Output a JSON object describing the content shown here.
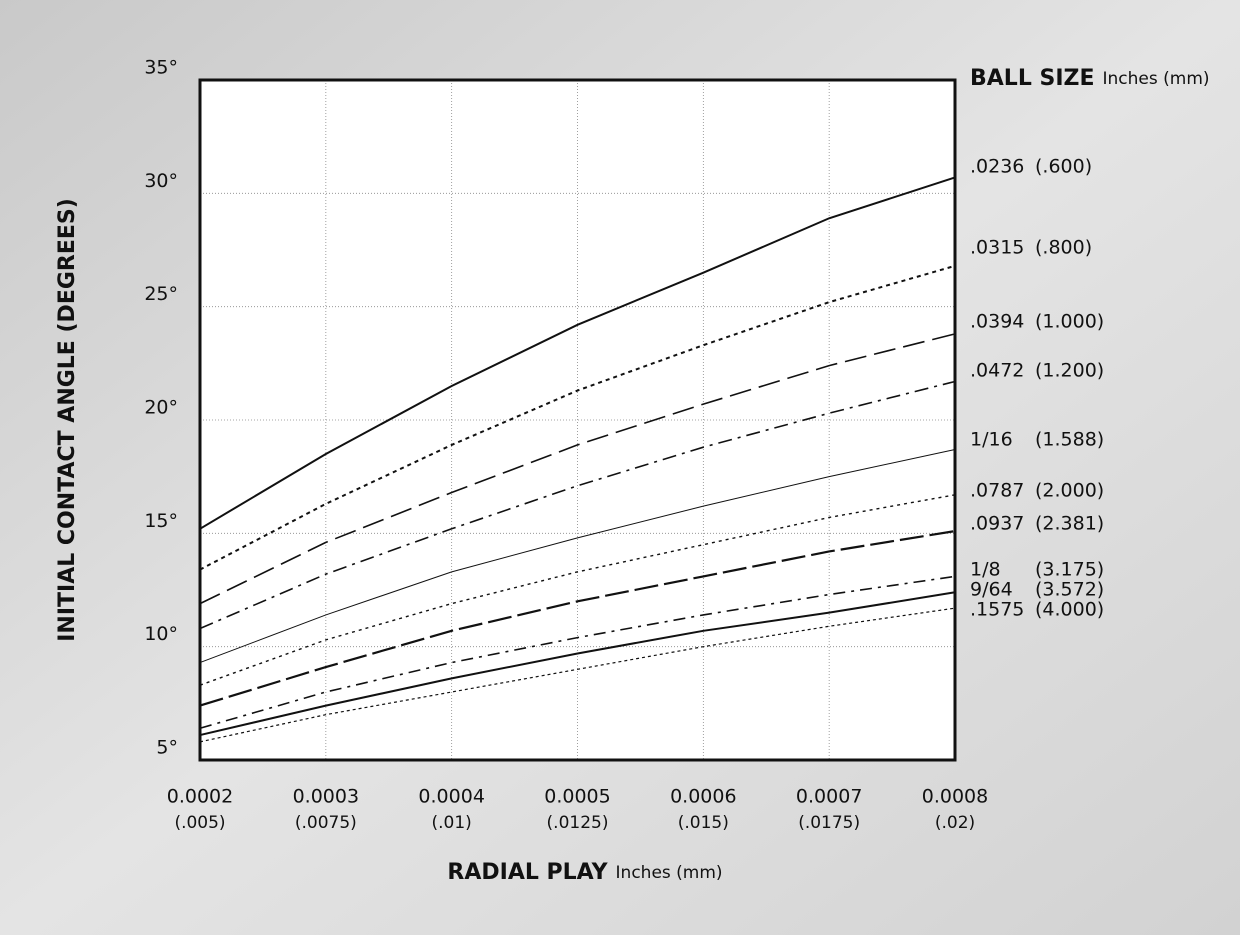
{
  "chart_data": {
    "type": "line",
    "ylabel": "INITIAL CONTACT ANGLE (DEGREES)",
    "xlabel": "RADIAL PLAY",
    "xlabel_units": "Inches (mm)",
    "legend_title": "BALL SIZE",
    "legend_units": "Inches (mm)",
    "x": [
      0.0002,
      0.0003,
      0.0004,
      0.0005,
      0.0006,
      0.0007,
      0.0008
    ],
    "xlim": [
      0.0002,
      0.0008
    ],
    "xticks": [
      0.0002,
      0.0003,
      0.0004,
      0.0005,
      0.0006,
      0.0007,
      0.0008
    ],
    "xticks_mm": [
      "(.005)",
      "(.0075)",
      "(.01)",
      "(.0125)",
      "(.015)",
      "(.0175)",
      "(.02)"
    ],
    "ylim": [
      5,
      35
    ],
    "yticks": [
      {
        "value": 5,
        "label": "5°"
      },
      {
        "value": 10,
        "label": "10°"
      },
      {
        "value": 15,
        "label": "15°"
      },
      {
        "value": 20,
        "label": "20°"
      },
      {
        "value": 25,
        "label": "25°"
      },
      {
        "value": 30,
        "label": "30°"
      },
      {
        "value": 35,
        "label": "35°"
      }
    ],
    "grid": true,
    "series": [
      {
        "name": ".0236",
        "mm": "(.600)",
        "color": "#111",
        "dash": "none",
        "width": 2,
        "values": [
          15.2,
          18.5,
          21.5,
          24.2,
          26.5,
          28.9,
          30.7
        ]
      },
      {
        "name": ".0315",
        "mm": "(.800)",
        "color": "#111",
        "dash": "4,4",
        "width": 2,
        "values": [
          13.4,
          16.3,
          18.9,
          21.3,
          23.3,
          25.2,
          26.8
        ]
      },
      {
        "name": ".0394",
        "mm": "(1.000)",
        "color": "#111",
        "dash": "22,8",
        "width": 1.6,
        "values": [
          11.9,
          14.6,
          16.8,
          18.9,
          20.7,
          22.4,
          23.8
        ]
      },
      {
        "name": ".0472",
        "mm": "(1.200)",
        "color": "#111",
        "dash": "14,6,3,6",
        "width": 1.6,
        "values": [
          10.8,
          13.2,
          15.2,
          17.1,
          18.8,
          20.3,
          21.7
        ]
      },
      {
        "name": "1/16",
        "mm": "(1.588)",
        "color": "#111",
        "dash": "none",
        "width": 1,
        "values": [
          9.3,
          11.4,
          13.3,
          14.8,
          16.2,
          17.5,
          18.7
        ]
      },
      {
        "name": ".0787",
        "mm": "(2.000)",
        "color": "#111",
        "dash": "3,4",
        "width": 1.4,
        "values": [
          8.3,
          10.3,
          11.9,
          13.3,
          14.5,
          15.7,
          16.7
        ]
      },
      {
        "name": ".0937",
        "mm": "(2.381)",
        "color": "#111",
        "dash": "24,6",
        "width": 2.2,
        "values": [
          7.4,
          9.1,
          10.7,
          12.0,
          13.1,
          14.2,
          15.1
        ]
      },
      {
        "name": "1/8",
        "mm": "(3.175)",
        "color": "#111",
        "dash": "12,6,3,6",
        "width": 1.6,
        "values": [
          6.4,
          8.0,
          9.3,
          10.4,
          11.4,
          12.3,
          13.1
        ]
      },
      {
        "name": "9/64",
        "mm": "(3.572)",
        "color": "#111",
        "dash": "none",
        "width": 2,
        "values": [
          6.1,
          7.4,
          8.6,
          9.7,
          10.7,
          11.5,
          12.4
        ]
      },
      {
        "name": ".1575",
        "mm": "(4.000)",
        "color": "#111",
        "dash": "3,3",
        "width": 1.2,
        "values": [
          5.8,
          7.0,
          8.0,
          9.0,
          10.0,
          10.9,
          11.7
        ]
      }
    ]
  }
}
